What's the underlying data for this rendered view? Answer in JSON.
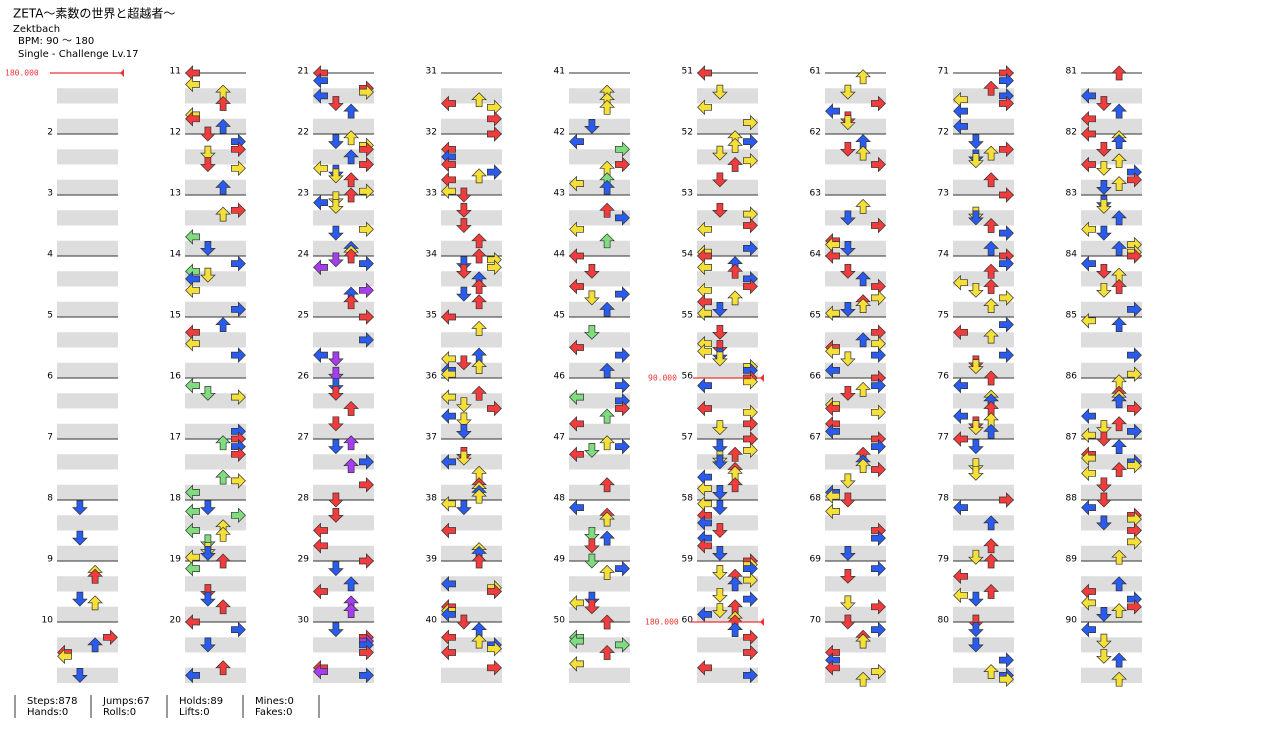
{
  "header": {
    "title": "ZETA～素数の世界と超越者～",
    "artist": "Zektbach",
    "bpm": "BPM: 90 ～ 180",
    "difficulty": "Single - Challenge  Lv.17"
  },
  "measures": [
    null,
    2,
    3,
    4,
    5,
    6,
    7,
    8,
    9,
    10,
    11,
    12,
    13,
    14,
    15,
    16,
    17,
    18,
    19,
    20,
    21,
    22,
    23,
    24,
    25,
    26,
    27,
    28,
    29,
    30,
    31,
    32,
    33,
    34,
    35,
    36,
    37,
    38,
    39,
    40,
    41,
    42,
    43,
    44,
    45,
    46,
    47,
    48,
    49,
    50,
    51,
    52,
    53,
    54,
    55,
    56,
    57,
    58,
    59,
    60,
    61,
    62,
    63,
    64,
    65,
    66,
    67,
    68,
    69,
    70,
    71,
    72,
    73,
    74,
    75,
    76,
    77,
    78,
    79,
    80,
    81,
    82,
    83,
    84,
    85,
    86,
    87,
    88,
    89,
    90
  ],
  "bpm_markers": [
    "180.000",
    "90.000",
    "180.000"
  ],
  "stats": [
    [
      "Steps:878",
      "Hands:0"
    ],
    [
      "Jumps:67",
      "Rolls:0"
    ],
    [
      "Holds:89",
      "Lifts:0"
    ],
    [
      "Mines:0",
      "Fakes:0"
    ]
  ]
}
